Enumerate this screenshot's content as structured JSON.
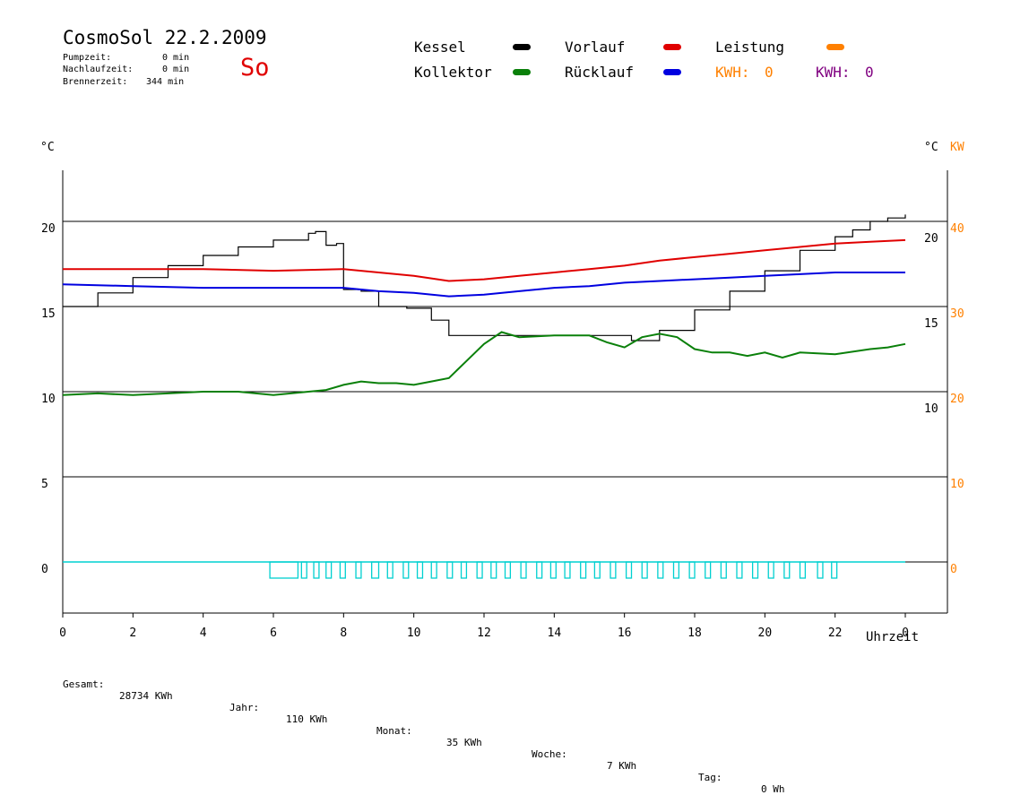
{
  "header": {
    "title": "CosmoSol 22.2.2009",
    "day": "So",
    "pumpzeit_label": "Pumpzeit:",
    "pumpzeit_value": "0 min",
    "nachlauf_label": "Nachlaufzeit:",
    "nachlauf_value": "0 min",
    "brenner_label": "Brennerzeit:",
    "brenner_value": "344 min"
  },
  "legend": {
    "kessel": "Kessel",
    "kollektor": "Kollektor",
    "vorlauf": "Vorlauf",
    "ruecklauf": "Rücklauf",
    "leistung": "Leistung",
    "kwh1_label": "KWH:",
    "kwh1_value": "0",
    "kwh2_label": "KWH:",
    "kwh2_value": "0",
    "colors": {
      "kessel": "#000000",
      "kollektor": "#0a800a",
      "vorlauf": "#e00000",
      "ruecklauf": "#0000e0",
      "leistung": "#ff8000",
      "kwh2": "#800080",
      "pump": "#00d0d0"
    }
  },
  "axes": {
    "left_unit": "°C",
    "right_unit_c": "°C",
    "right_unit_kw": "KW",
    "xlabel": "Uhrzeit"
  },
  "footer": {
    "gesamt_label": "Gesamt:",
    "gesamt_value": "28734 KWh",
    "jahr_label": "Jahr:",
    "jahr_value": "110 KWh",
    "monat_label": "Monat:",
    "monat_value": "35 KWh",
    "woche_label": "Woche:",
    "woche_value": "7 KWh",
    "tag_label": "Tag:",
    "tag_value": "0 Wh"
  },
  "chart_data": {
    "type": "line",
    "xlabel": "Uhrzeit",
    "x_ticks": [
      "0",
      "2",
      "4",
      "6",
      "8",
      "10",
      "12",
      "14",
      "16",
      "18",
      "20",
      "22",
      "0"
    ],
    "xlim": [
      0,
      24
    ],
    "ylim": [
      -3,
      23
    ],
    "y_left_ticks": [
      0,
      5,
      10,
      15,
      20
    ],
    "y_right_c_ticks": [
      10,
      15,
      20
    ],
    "y_right_kw_ticks": [
      0,
      10,
      20,
      30,
      40
    ],
    "grid_y": [
      0,
      5,
      10,
      15,
      20
    ],
    "series": [
      {
        "name": "Kessel",
        "color": "#000000",
        "x": [
          0,
          1,
          2,
          3,
          4,
          5,
          6,
          7,
          7.2,
          7.5,
          7.8,
          8,
          8.5,
          9,
          9.8,
          10.5,
          11,
          12,
          13,
          14,
          15,
          16,
          16.2,
          17,
          18,
          19,
          20,
          21,
          22,
          22.5,
          23,
          23.5,
          24
        ],
        "y": [
          15,
          15.8,
          16.7,
          17.4,
          18.0,
          18.5,
          18.9,
          19.3,
          19.4,
          18.6,
          18.7,
          16,
          15.9,
          15,
          14.9,
          14.2,
          13.3,
          13.3,
          13.3,
          13.3,
          13.3,
          13.3,
          13.0,
          13.6,
          14.8,
          15.9,
          17.1,
          18.3,
          19.1,
          19.5,
          20.0,
          20.2,
          20.4
        ]
      },
      {
        "name": "Vorlauf",
        "color": "#e00000",
        "x": [
          0,
          2,
          4,
          6,
          8,
          9,
          10,
          11,
          12,
          13,
          14,
          15,
          16,
          17,
          18,
          19,
          20,
          21,
          22,
          23,
          24
        ],
        "y": [
          17.2,
          17.2,
          17.2,
          17.1,
          17.2,
          17.0,
          16.8,
          16.5,
          16.6,
          16.8,
          17.0,
          17.2,
          17.4,
          17.7,
          17.9,
          18.1,
          18.3,
          18.5,
          18.7,
          18.8,
          18.9
        ]
      },
      {
        "name": "Rücklauf",
        "color": "#0000e0",
        "x": [
          0,
          2,
          4,
          6,
          8,
          9,
          10,
          11,
          12,
          13,
          14,
          15,
          16,
          17,
          18,
          19,
          20,
          21,
          22,
          23,
          24
        ],
        "y": [
          16.3,
          16.2,
          16.1,
          16.1,
          16.1,
          15.9,
          15.8,
          15.6,
          15.7,
          15.9,
          16.1,
          16.2,
          16.4,
          16.5,
          16.6,
          16.7,
          16.8,
          16.9,
          17.0,
          17.0,
          17.0
        ]
      },
      {
        "name": "Kollektor",
        "color": "#0a800a",
        "x": [
          0,
          1,
          2,
          3,
          4,
          5,
          6,
          7,
          7.5,
          8,
          8.5,
          9,
          9.5,
          10,
          10.5,
          11,
          11.5,
          12,
          12.5,
          13,
          14,
          15,
          15.5,
          16,
          16.5,
          17,
          17.5,
          18,
          18.5,
          19,
          19.5,
          20,
          20.5,
          21,
          22,
          23,
          23.5,
          24
        ],
        "y": [
          9.8,
          9.9,
          9.8,
          9.9,
          10.0,
          10.0,
          9.8,
          10.0,
          10.1,
          10.4,
          10.6,
          10.5,
          10.5,
          10.4,
          10.6,
          10.8,
          11.8,
          12.8,
          13.5,
          13.2,
          13.3,
          13.3,
          12.9,
          12.6,
          13.2,
          13.4,
          13.2,
          12.5,
          12.3,
          12.3,
          12.1,
          12.3,
          12.0,
          12.3,
          12.2,
          12.5,
          12.6,
          12.8
        ]
      }
    ],
    "pump_on_intervals": [
      [
        5.9,
        6.7
      ],
      [
        6.8,
        6.95
      ],
      [
        7.15,
        7.3
      ],
      [
        7.5,
        7.65
      ],
      [
        7.9,
        8.05
      ],
      [
        8.35,
        8.5
      ],
      [
        8.8,
        9.0
      ],
      [
        9.25,
        9.4
      ],
      [
        9.7,
        9.85
      ],
      [
        10.1,
        10.25
      ],
      [
        10.5,
        10.65
      ],
      [
        10.95,
        11.1
      ],
      [
        11.35,
        11.5
      ],
      [
        11.8,
        11.95
      ],
      [
        12.2,
        12.35
      ],
      [
        12.6,
        12.75
      ],
      [
        13.05,
        13.2
      ],
      [
        13.5,
        13.65
      ],
      [
        13.9,
        14.05
      ],
      [
        14.3,
        14.45
      ],
      [
        14.75,
        14.9
      ],
      [
        15.15,
        15.3
      ],
      [
        15.6,
        15.75
      ],
      [
        16.05,
        16.2
      ],
      [
        16.5,
        16.65
      ],
      [
        16.95,
        17.1
      ],
      [
        17.4,
        17.55
      ],
      [
        17.85,
        18.0
      ],
      [
        18.3,
        18.45
      ],
      [
        18.75,
        18.9
      ],
      [
        19.2,
        19.35
      ],
      [
        19.65,
        19.8
      ],
      [
        20.1,
        20.25
      ],
      [
        20.55,
        20.7
      ],
      [
        21.0,
        21.15
      ],
      [
        21.5,
        21.65
      ],
      [
        21.9,
        22.05
      ]
    ]
  }
}
